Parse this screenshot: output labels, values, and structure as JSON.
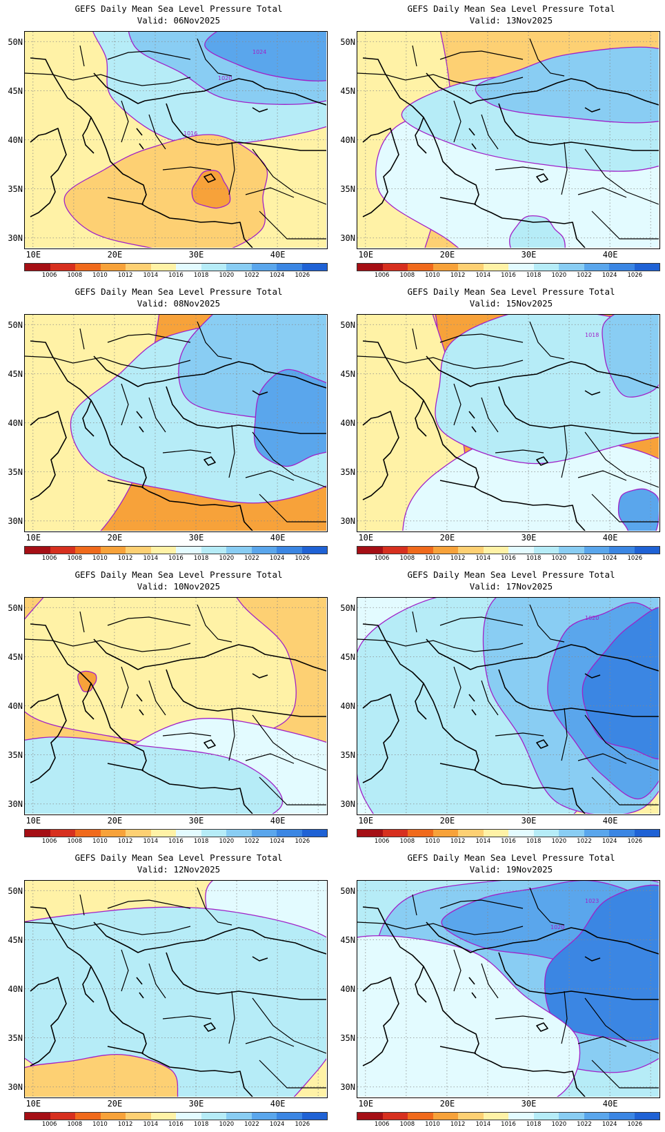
{
  "title": "GEFS Daily Mean Sea Level Pressure Total",
  "lat_labels": [
    "50N",
    "45N",
    "40N",
    "35N",
    "30N"
  ],
  "lon_labels": [
    "10E",
    "20E",
    "30E",
    "40E"
  ],
  "colorbar_levels": [
    "1006",
    "1008",
    "1010",
    "1012",
    "1014",
    "1016",
    "1018",
    "1020",
    "1022",
    "1024",
    "1026"
  ],
  "colorbar_colors": [
    "#a50f15",
    "#d7301f",
    "#f06a1c",
    "#f7a23a",
    "#fdd073",
    "#fff2a6",
    "#e3fbff",
    "#b6ecf7",
    "#89cdf3",
    "#5aa6ec",
    "#3b86e3",
    "#1f62d5"
  ],
  "panels": [
    {
      "valid": "Valid: 06Nov2025",
      "field_colors": [
        "#fff2a6",
        "#e3fbff",
        "#b6ecf7",
        "#89cdf3",
        "#5aa6ec",
        "#fdd073",
        "#f7a23a"
      ],
      "contour_labels": [
        "1024",
        "1020",
        "1016"
      ]
    },
    {
      "valid": "Valid: 13Nov2025",
      "field_colors": [
        "#fdd073",
        "#fff2a6",
        "#e3fbff",
        "#b6ecf7",
        "#89cdf3",
        "#b6ecf7"
      ],
      "contour_labels": []
    },
    {
      "valid": "Valid: 08Nov2025",
      "field_colors": [
        "#f7a23a",
        "#fdd073",
        "#fff2a6",
        "#b6ecf7",
        "#89cdf3",
        "#5aa6ec"
      ],
      "contour_labels": []
    },
    {
      "valid": "Valid: 15Nov2025",
      "field_colors": [
        "#f7a23a",
        "#fdd073",
        "#fff2a6",
        "#e3fbff",
        "#b6ecf7",
        "#89cdf3",
        "#5aa6ec"
      ],
      "contour_labels": [
        "1018"
      ]
    },
    {
      "valid": "Valid: 10Nov2025",
      "field_colors": [
        "#fdd073",
        "#fff2a6",
        "#e3fbff",
        "#b6ecf7",
        "#f7a23a"
      ],
      "contour_labels": []
    },
    {
      "valid": "Valid: 17Nov2025",
      "field_colors": [
        "#fff2a6",
        "#e3fbff",
        "#b6ecf7",
        "#89cdf3",
        "#5aa6ec",
        "#3b86e3"
      ],
      "contour_labels": [
        "1020"
      ]
    },
    {
      "valid": "Valid: 12Nov2025",
      "field_colors": [
        "#fff2a6",
        "#e3fbff",
        "#b6ecf7",
        "#fdd073"
      ],
      "contour_labels": []
    },
    {
      "valid": "Valid: 19Nov2025",
      "field_colors": [
        "#b6ecf7",
        "#89cdf3",
        "#5aa6ec",
        "#3b86e3",
        "#e3fbff"
      ],
      "contour_labels": [
        "1023",
        "1020"
      ]
    }
  ]
}
